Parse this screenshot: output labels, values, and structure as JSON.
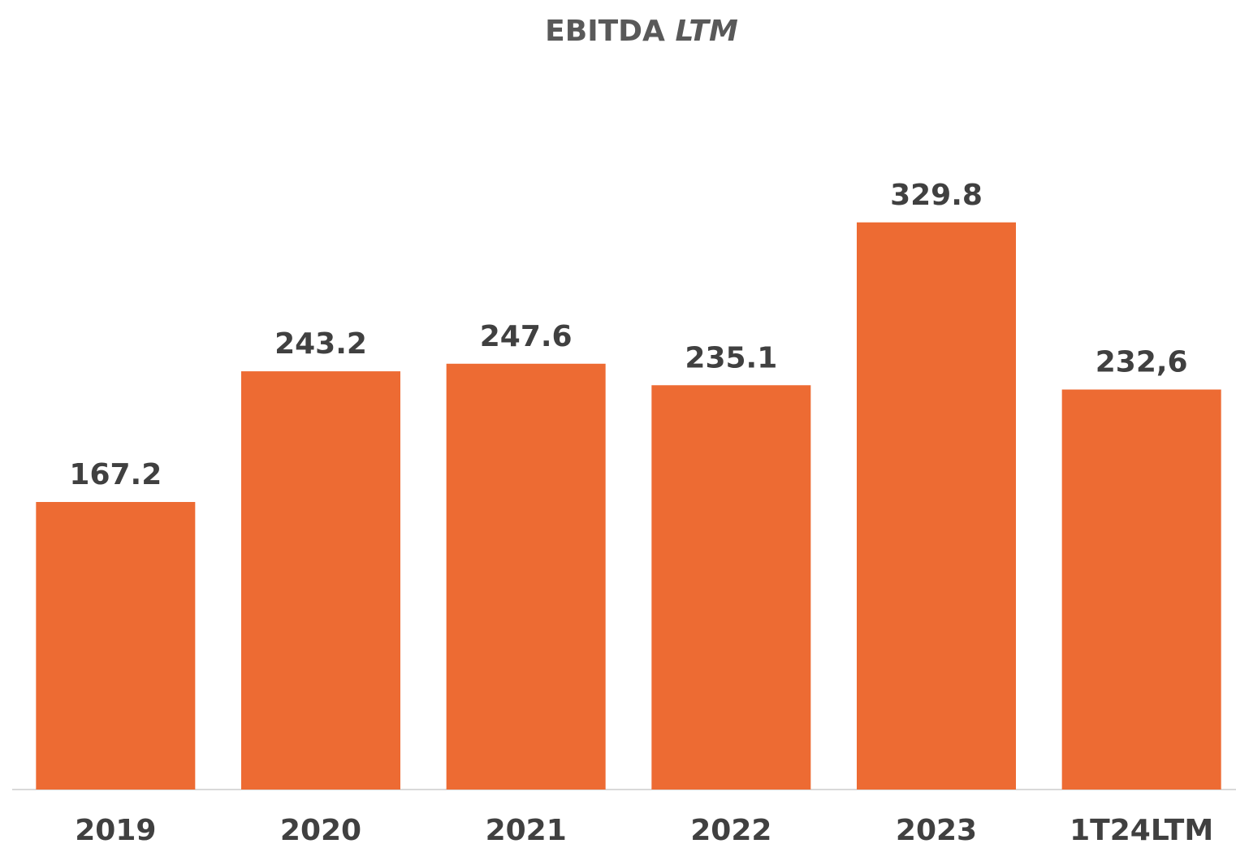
{
  "chart_data": {
    "type": "bar",
    "title": "EBITDA",
    "title_suffix": "LTM",
    "categories": [
      "2019",
      "2020",
      "2021",
      "2022",
      "2023",
      "1T24LTM"
    ],
    "values": [
      167.2,
      243.2,
      247.6,
      235.1,
      329.8,
      232.6
    ],
    "value_labels": [
      "167.2",
      "243.2",
      "247.6",
      "235.1",
      "329.8",
      "232,6"
    ],
    "color": "#ed6b33",
    "ylim": [
      0,
      350
    ],
    "grid": false
  }
}
